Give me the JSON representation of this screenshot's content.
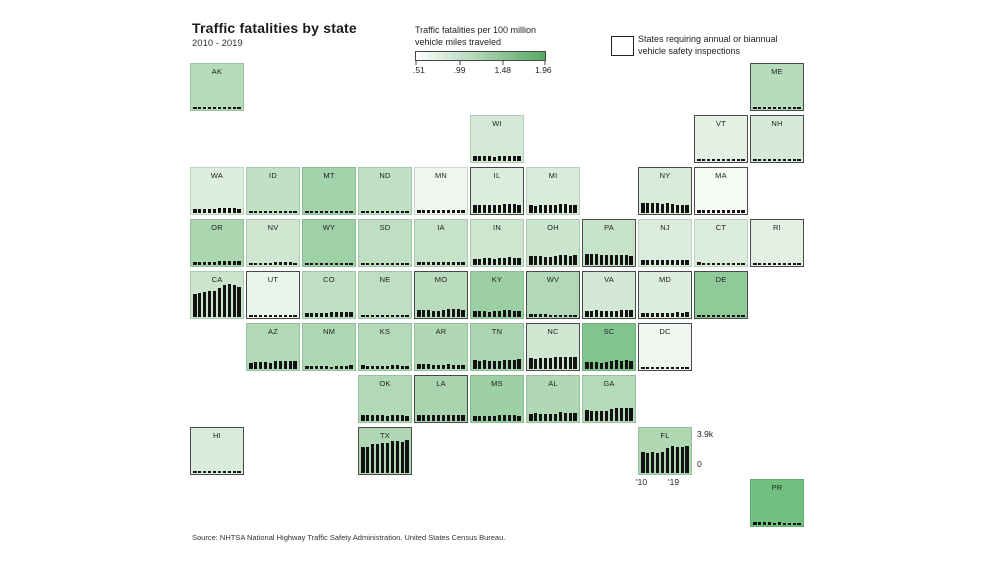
{
  "header": {
    "title": "Traffic fatalities by state",
    "subtitle": "2010 - 2019"
  },
  "legend": {
    "gradient_title_line1": "Traffic fatalities per 100 million",
    "gradient_title_line2": "vehicle miles traveled",
    "tick_labels": [
      ".51",
      ".99",
      "1.48",
      "1.96"
    ],
    "gradient_start_color": "#ffffff",
    "gradient_end_color": "#57a863",
    "inspection_line1": "States requiring annual or biannual",
    "inspection_line2": "vehicle safety inspections"
  },
  "fl_axis": {
    "max_label": "3.9k",
    "zero_label": "0",
    "start_year_label": "'10",
    "end_year_label": "'19"
  },
  "source": "Source: NHTSA National Highway Traffic Safety Administration. United States Census Bureau.",
  "chart_data": {
    "type": "bar",
    "layout": "us-tile-grid-map-with-sparkline-bars",
    "title": "Traffic fatalities by state",
    "subtitle": "2010 - 2019",
    "years": [
      2010,
      2011,
      2012,
      2013,
      2014,
      2015,
      2016,
      2017,
      2018,
      2019
    ],
    "y_axis": {
      "min": 0,
      "max_thousands": 3.9,
      "max_label": "3.9k",
      "units": "annual traffic fatalities (thousands)"
    },
    "color_scale": {
      "label": "Traffic fatalities per 100 million vehicle miles traveled",
      "domain": [
        0.51,
        0.99,
        1.48,
        1.96
      ],
      "colors": [
        "#ffffff",
        "#57a863"
      ]
    },
    "inspection_note": "Dark-outlined tiles = states requiring annual or biannual vehicle safety inspections",
    "states": [
      {
        "code": "AK",
        "row": 1,
        "col": 1,
        "color": "#b7dcbc",
        "inspection": false,
        "fatalities_thousands": [
          0.06,
          0.07,
          0.06,
          0.05,
          0.07,
          0.07,
          0.08,
          0.08,
          0.08,
          0.07
        ]
      },
      {
        "code": "ME",
        "row": 1,
        "col": 11,
        "color": "#b7dcbc",
        "inspection": true,
        "fatalities_thousands": [
          0.16,
          0.14,
          0.16,
          0.15,
          0.13,
          0.16,
          0.16,
          0.17,
          0.14,
          0.16
        ]
      },
      {
        "code": "WI",
        "row": 2,
        "col": 6,
        "color": "#d3e9d5",
        "inspection": false,
        "fatalities_thousands": [
          0.57,
          0.58,
          0.62,
          0.54,
          0.51,
          0.57,
          0.61,
          0.61,
          0.59,
          0.6
        ]
      },
      {
        "code": "VT",
        "row": 2,
        "col": 10,
        "color": "#e3f0e4",
        "inspection": true,
        "fatalities_thousands": [
          0.07,
          0.06,
          0.08,
          0.07,
          0.04,
          0.06,
          0.06,
          0.07,
          0.07,
          0.05
        ]
      },
      {
        "code": "NH",
        "row": 2,
        "col": 11,
        "color": "#d5ead7",
        "inspection": true,
        "fatalities_thousands": [
          0.13,
          0.09,
          0.11,
          0.14,
          0.1,
          0.11,
          0.14,
          0.1,
          0.15,
          0.1
        ]
      },
      {
        "code": "WA",
        "row": 3,
        "col": 1,
        "color": "#ddeede",
        "inspection": false,
        "fatalities_thousands": [
          0.46,
          0.45,
          0.44,
          0.44,
          0.46,
          0.55,
          0.54,
          0.56,
          0.55,
          0.52
        ]
      },
      {
        "code": "ID",
        "row": 3,
        "col": 2,
        "color": "#c1e1c5",
        "inspection": false,
        "fatalities_thousands": [
          0.21,
          0.17,
          0.18,
          0.21,
          0.19,
          0.22,
          0.25,
          0.24,
          0.23,
          0.22
        ]
      },
      {
        "code": "MT",
        "row": 3,
        "col": 3,
        "color": "#a3d3aa",
        "inspection": false,
        "fatalities_thousands": [
          0.19,
          0.21,
          0.21,
          0.23,
          0.19,
          0.22,
          0.19,
          0.19,
          0.18,
          0.18
        ]
      },
      {
        "code": "ND",
        "row": 3,
        "col": 4,
        "color": "#c1e1c5",
        "inspection": false,
        "fatalities_thousands": [
          0.11,
          0.15,
          0.17,
          0.15,
          0.14,
          0.13,
          0.11,
          0.12,
          0.11,
          0.1
        ]
      },
      {
        "code": "MN",
        "row": 3,
        "col": 5,
        "color": "#eef6ef",
        "inspection": false,
        "fatalities_thousands": [
          0.41,
          0.37,
          0.4,
          0.39,
          0.36,
          0.41,
          0.39,
          0.36,
          0.38,
          0.36
        ]
      },
      {
        "code": "IL",
        "row": 3,
        "col": 6,
        "color": "#dbeddc",
        "inspection": true,
        "fatalities_thousands": [
          0.93,
          0.92,
          0.96,
          0.99,
          0.92,
          1.0,
          1.08,
          1.1,
          1.03,
          1.01
        ]
      },
      {
        "code": "MI",
        "row": 3,
        "col": 7,
        "color": "#d8ecd9",
        "inspection": false,
        "fatalities_thousands": [
          0.94,
          0.89,
          0.94,
          0.95,
          0.9,
          0.96,
          1.06,
          1.03,
          0.97,
          0.99
        ]
      },
      {
        "code": "NY",
        "row": 3,
        "col": 9,
        "color": "#d7ebd8",
        "inspection": true,
        "fatalities_thousands": [
          1.2,
          1.17,
          1.17,
          1.2,
          1.04,
          1.14,
          1.04,
          1.0,
          0.94,
          0.93
        ]
      },
      {
        "code": "MA",
        "row": 3,
        "col": 10,
        "color": "#f5faf5",
        "inspection": true,
        "fatalities_thousands": [
          0.35,
          0.37,
          0.38,
          0.35,
          0.36,
          0.31,
          0.39,
          0.35,
          0.36,
          0.34
        ]
      },
      {
        "code": "OR",
        "row": 4,
        "col": 1,
        "color": "#abd6b0",
        "inspection": false,
        "fatalities_thousands": [
          0.32,
          0.33,
          0.34,
          0.31,
          0.36,
          0.45,
          0.5,
          0.44,
          0.5,
          0.49
        ]
      },
      {
        "code": "NV",
        "row": 4,
        "col": 2,
        "color": "#cfe7d1",
        "inspection": false,
        "fatalities_thousands": [
          0.26,
          0.25,
          0.26,
          0.26,
          0.29,
          0.33,
          0.33,
          0.31,
          0.33,
          0.3
        ]
      },
      {
        "code": "WY",
        "row": 4,
        "col": 3,
        "color": "#9ed1a6",
        "inspection": false,
        "fatalities_thousands": [
          0.16,
          0.14,
          0.12,
          0.09,
          0.15,
          0.15,
          0.11,
          0.12,
          0.11,
          0.15
        ]
      },
      {
        "code": "SD",
        "row": 4,
        "col": 4,
        "color": "#bedfc2",
        "inspection": false,
        "fatalities_thousands": [
          0.14,
          0.11,
          0.13,
          0.14,
          0.14,
          0.13,
          0.12,
          0.13,
          0.13,
          0.1
        ]
      },
      {
        "code": "IA",
        "row": 4,
        "col": 5,
        "color": "#c6e3c9",
        "inspection": false,
        "fatalities_thousands": [
          0.39,
          0.36,
          0.37,
          0.32,
          0.32,
          0.32,
          0.4,
          0.33,
          0.32,
          0.34
        ]
      },
      {
        "code": "IN",
        "row": 4,
        "col": 6,
        "color": "#cde6cf",
        "inspection": false,
        "fatalities_thousands": [
          0.75,
          0.75,
          0.78,
          0.78,
          0.75,
          0.82,
          0.83,
          0.91,
          0.86,
          0.81
        ]
      },
      {
        "code": "OH",
        "row": 4,
        "col": 7,
        "color": "#cbe5ce",
        "inspection": false,
        "fatalities_thousands": [
          1.08,
          1.02,
          1.12,
          0.99,
          1.01,
          1.11,
          1.13,
          1.18,
          1.07,
          1.16
        ]
      },
      {
        "code": "PA",
        "row": 4,
        "col": 8,
        "color": "#c6e3c9",
        "inspection": true,
        "fatalities_thousands": [
          1.32,
          1.29,
          1.31,
          1.21,
          1.2,
          1.2,
          1.19,
          1.14,
          1.19,
          1.06
        ]
      },
      {
        "code": "NJ",
        "row": 4,
        "col": 9,
        "color": "#dceddd",
        "inspection": false,
        "fatalities_thousands": [
          0.56,
          0.63,
          0.59,
          0.54,
          0.56,
          0.56,
          0.6,
          0.62,
          0.56,
          0.56
        ]
      },
      {
        "code": "CT",
        "row": 4,
        "col": 10,
        "color": "#dcedde",
        "inspection": false,
        "fatalities_thousands": [
          0.32,
          0.22,
          0.26,
          0.29,
          0.25,
          0.28,
          0.3,
          0.28,
          0.29,
          0.25
        ]
      },
      {
        "code": "RI",
        "row": 4,
        "col": 11,
        "color": "#e2f0e3",
        "inspection": true,
        "fatalities_thousands": [
          0.07,
          0.07,
          0.06,
          0.07,
          0.05,
          0.05,
          0.05,
          0.08,
          0.06,
          0.06
        ]
      },
      {
        "code": "CA",
        "row": 5,
        "col": 1,
        "color": "#cbe5cd",
        "inspection": false,
        "fatalities_thousands": [
          2.72,
          2.84,
          2.97,
          3.11,
          3.1,
          3.39,
          3.84,
          3.88,
          3.8,
          3.61
        ]
      },
      {
        "code": "UT",
        "row": 5,
        "col": 2,
        "color": "#e9f4ea",
        "inspection": true,
        "fatalities_thousands": [
          0.24,
          0.24,
          0.22,
          0.22,
          0.26,
          0.28,
          0.28,
          0.27,
          0.26,
          0.25
        ]
      },
      {
        "code": "CO",
        "row": 5,
        "col": 3,
        "color": "#c0e0c4",
        "inspection": false,
        "fatalities_thousands": [
          0.45,
          0.45,
          0.47,
          0.48,
          0.49,
          0.55,
          0.61,
          0.65,
          0.63,
          0.6
        ]
      },
      {
        "code": "NE",
        "row": 5,
        "col": 4,
        "color": "#bedfc2",
        "inspection": false,
        "fatalities_thousands": [
          0.19,
          0.18,
          0.21,
          0.21,
          0.23,
          0.25,
          0.22,
          0.23,
          0.23,
          0.25
        ]
      },
      {
        "code": "MO",
        "row": 5,
        "col": 5,
        "color": "#b9dcbd",
        "inspection": true,
        "fatalities_thousands": [
          0.82,
          0.79,
          0.83,
          0.76,
          0.77,
          0.87,
          0.95,
          0.93,
          0.92,
          0.88
        ]
      },
      {
        "code": "KY",
        "row": 5,
        "col": 6,
        "color": "#9cd0a4",
        "inspection": false,
        "fatalities_thousands": [
          0.76,
          0.72,
          0.75,
          0.64,
          0.67,
          0.76,
          0.83,
          0.78,
          0.72,
          0.73
        ]
      },
      {
        "code": "WV",
        "row": 5,
        "col": 7,
        "color": "#b2d9b7",
        "inspection": true,
        "fatalities_thousands": [
          0.32,
          0.34,
          0.34,
          0.33,
          0.27,
          0.27,
          0.27,
          0.3,
          0.29,
          0.26
        ]
      },
      {
        "code": "VA",
        "row": 5,
        "col": 8,
        "color": "#d2e8d4",
        "inspection": true,
        "fatalities_thousands": [
          0.74,
          0.76,
          0.78,
          0.74,
          0.7,
          0.75,
          0.76,
          0.84,
          0.82,
          0.83
        ]
      },
      {
        "code": "MD",
        "row": 5,
        "col": 9,
        "color": "#dceddd",
        "inspection": true,
        "fatalities_thousands": [
          0.5,
          0.49,
          0.51,
          0.47,
          0.44,
          0.52,
          0.52,
          0.56,
          0.51,
          0.54
        ]
      },
      {
        "code": "DE",
        "row": 5,
        "col": 10,
        "color": "#8fca99",
        "inspection": true,
        "fatalities_thousands": [
          0.1,
          0.1,
          0.11,
          0.1,
          0.12,
          0.13,
          0.12,
          0.12,
          0.11,
          0.13
        ]
      },
      {
        "code": "AZ",
        "row": 6,
        "col": 2,
        "color": "#b2d9b6",
        "inspection": false,
        "fatalities_thousands": [
          0.76,
          0.83,
          0.82,
          0.85,
          0.77,
          0.9,
          0.96,
          1.0,
          1.01,
          0.98
        ]
      },
      {
        "code": "NM",
        "row": 6,
        "col": 3,
        "color": "#aed7b3",
        "inspection": false,
        "fatalities_thousands": [
          0.35,
          0.35,
          0.37,
          0.31,
          0.38,
          0.3,
          0.4,
          0.38,
          0.39,
          0.42
        ]
      },
      {
        "code": "KS",
        "row": 6,
        "col": 4,
        "color": "#b5dab9",
        "inspection": false,
        "fatalities_thousands": [
          0.43,
          0.39,
          0.4,
          0.35,
          0.39,
          0.36,
          0.43,
          0.46,
          0.4,
          0.41
        ]
      },
      {
        "code": "AR",
        "row": 6,
        "col": 5,
        "color": "#b0d8b5",
        "inspection": false,
        "fatalities_thousands": [
          0.56,
          0.55,
          0.55,
          0.5,
          0.47,
          0.53,
          0.55,
          0.49,
          0.52,
          0.51
        ]
      },
      {
        "code": "TN",
        "row": 6,
        "col": 6,
        "color": "#abd5b0",
        "inspection": false,
        "fatalities_thousands": [
          1.03,
          0.94,
          1.02,
          1.0,
          0.96,
          0.96,
          1.04,
          1.04,
          1.04,
          1.14
        ]
      },
      {
        "code": "NC",
        "row": 6,
        "col": 7,
        "color": "#cfe7d1",
        "inspection": true,
        "fatalities_thousands": [
          1.32,
          1.23,
          1.29,
          1.29,
          1.28,
          1.38,
          1.45,
          1.41,
          1.44,
          1.47
        ]
      },
      {
        "code": "SC",
        "row": 6,
        "col": 8,
        "color": "#82c48d",
        "inspection": false,
        "fatalities_thousands": [
          0.81,
          0.83,
          0.86,
          0.77,
          0.82,
          0.98,
          1.02,
          0.99,
          1.04,
          1.0
        ]
      },
      {
        "code": "DC",
        "row": 6,
        "col": 9,
        "color": "#eff7f0",
        "inspection": true,
        "fatalities_thousands": [
          0.02,
          0.03,
          0.02,
          0.02,
          0.02,
          0.02,
          0.03,
          0.03,
          0.03,
          0.02
        ]
      },
      {
        "code": "OK",
        "row": 7,
        "col": 4,
        "color": "#b2d9b6",
        "inspection": false,
        "fatalities_thousands": [
          0.67,
          0.7,
          0.71,
          0.68,
          0.67,
          0.65,
          0.69,
          0.66,
          0.66,
          0.64
        ]
      },
      {
        "code": "LA",
        "row": 7,
        "col": 5,
        "color": "#aad4ae",
        "inspection": true,
        "fatalities_thousands": [
          0.72,
          0.68,
          0.72,
          0.7,
          0.74,
          0.75,
          0.76,
          0.76,
          0.77,
          0.73
        ]
      },
      {
        "code": "MS",
        "row": 7,
        "col": 6,
        "color": "#9dd0a5",
        "inspection": false,
        "fatalities_thousands": [
          0.64,
          0.63,
          0.58,
          0.61,
          0.61,
          0.68,
          0.69,
          0.69,
          0.66,
          0.64
        ]
      },
      {
        "code": "AL",
        "row": 7,
        "col": 7,
        "color": "#b0d8b4",
        "inspection": false,
        "fatalities_thousands": [
          0.86,
          0.9,
          0.87,
          0.85,
          0.82,
          0.85,
          1.08,
          0.95,
          0.95,
          0.93
        ]
      },
      {
        "code": "GA",
        "row": 7,
        "col": 8,
        "color": "#b5dab9",
        "inspection": false,
        "fatalities_thousands": [
          1.25,
          1.23,
          1.19,
          1.18,
          1.16,
          1.43,
          1.56,
          1.54,
          1.5,
          1.49
        ]
      },
      {
        "code": "HI",
        "row": 8,
        "col": 1,
        "color": "#d9ebda",
        "inspection": true,
        "fatalities_thousands": [
          0.11,
          0.1,
          0.13,
          0.1,
          0.1,
          0.09,
          0.12,
          0.11,
          0.12,
          0.11
        ]
      },
      {
        "code": "TX",
        "row": 8,
        "col": 4,
        "color": "#b1d8b5",
        "inspection": true,
        "fatalities_thousands": [
          3.06,
          3.05,
          3.41,
          3.39,
          3.54,
          3.58,
          3.78,
          3.73,
          3.65,
          3.89
        ]
      },
      {
        "code": "FL",
        "row": 8,
        "col": 9,
        "color": "#aed7b2",
        "inspection": false,
        "fatalities_thousands": [
          2.44,
          2.4,
          2.43,
          2.4,
          2.49,
          2.94,
          3.18,
          3.12,
          3.13,
          3.18
        ]
      },
      {
        "code": "PR",
        "row": 9,
        "col": 11,
        "color": "#72c07f",
        "inspection": false,
        "fatalities_thousands": [
          0.34,
          0.36,
          0.33,
          0.31,
          0.29,
          0.31,
          0.28,
          0.29,
          0.25,
          0.26
        ]
      }
    ]
  }
}
